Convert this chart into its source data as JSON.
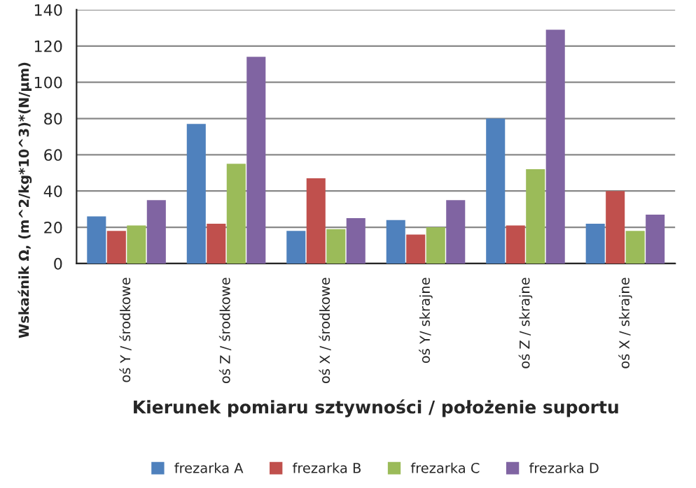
{
  "chart_data": {
    "type": "bar",
    "xlabel": "Kierunek pomiaru sztywności / położenie suportu",
    "ylabel": "Wskaźnik Ω, (m^2/kg*10^3)*(N/μm)",
    "categories": [
      "oś Y / środkowe",
      "oś Z / środkowe",
      "oś X / środkowe",
      "oś Y/ skrajne",
      "oś Z / skrajne",
      "oś X / skrajne"
    ],
    "series": [
      {
        "name": "frezarka A",
        "color": "#4f81bd",
        "values": [
          26,
          77,
          18,
          24,
          80,
          22
        ]
      },
      {
        "name": "frezarka B",
        "color": "#c0504d",
        "values": [
          18,
          22,
          47,
          16,
          21,
          40
        ]
      },
      {
        "name": "frezarka C",
        "color": "#9bbb59",
        "values": [
          21,
          55,
          19,
          20,
          52,
          18
        ]
      },
      {
        "name": "frezarka D",
        "color": "#8064a2",
        "values": [
          35,
          114,
          25,
          35,
          129,
          27
        ]
      }
    ],
    "ylim": [
      0,
      140
    ],
    "yticks": [
      0,
      20,
      40,
      60,
      80,
      100,
      120,
      140
    ],
    "grid": "y",
    "legend": "bottom"
  }
}
